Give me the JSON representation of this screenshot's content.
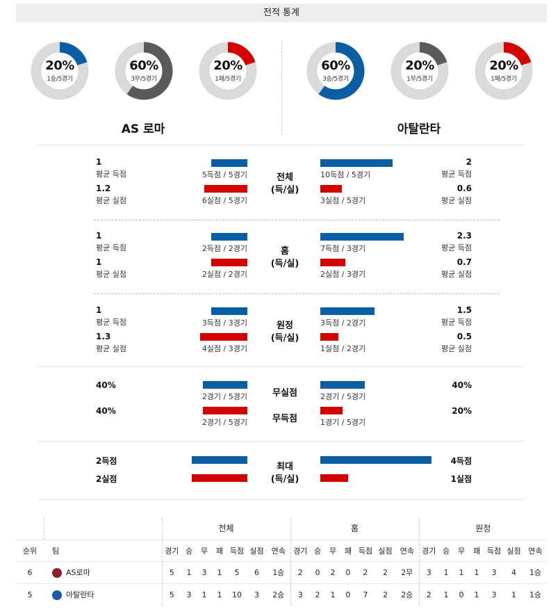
{
  "title": "전적 통계",
  "colors": {
    "blue": "#0b5ea3",
    "red": "#d40000",
    "gray": "#5a5a5a",
    "track": "#dadada"
  },
  "home": {
    "name": "AS 로마",
    "donuts": [
      {
        "pct": "20%",
        "sub": "1승/5경기",
        "value": 0.2,
        "color": "#0b5ea3"
      },
      {
        "pct": "60%",
        "sub": "3무/5경기",
        "value": 0.6,
        "color": "#5a5a5a"
      },
      {
        "pct": "20%",
        "sub": "1패/5경기",
        "value": 0.2,
        "color": "#d40000"
      }
    ]
  },
  "away": {
    "name": "아탈란타",
    "donuts": [
      {
        "pct": "60%",
        "sub": "3승/5경기",
        "value": 0.6,
        "color": "#0b5ea3"
      },
      {
        "pct": "20%",
        "sub": "1무/5경기",
        "value": 0.2,
        "color": "#5a5a5a"
      },
      {
        "pct": "20%",
        "sub": "1패/5경기",
        "value": 0.2,
        "color": "#d40000"
      }
    ]
  },
  "sections": [
    {
      "title": "전체",
      "subtitle": "(득/실)",
      "home": {
        "scored_val": "1",
        "scored_label": "평균 득점",
        "conceded_val": "1.2",
        "conceded_label": "평균 실점",
        "scored_text": "5득점 / 5경기",
        "conceded_text": "6실점 / 5경기",
        "scored_ratio": 1.0,
        "conceded_ratio": 1.2
      },
      "away": {
        "scored_val": "2",
        "scored_label": "평균 득점",
        "conceded_val": "0.6",
        "conceded_label": "평균 실점",
        "scored_text": "10득점 / 5경기",
        "conceded_text": "3실점 / 5경기",
        "scored_ratio": 2.0,
        "conceded_ratio": 0.6
      }
    },
    {
      "title": "홈",
      "subtitle": "(득/실)",
      "home": {
        "scored_val": "1",
        "scored_label": "평균 득점",
        "conceded_val": "1",
        "conceded_label": "평균 실점",
        "scored_text": "2득점 / 2경기",
        "conceded_text": "2실점 / 2경기",
        "scored_ratio": 1.0,
        "conceded_ratio": 1.0
      },
      "away": {
        "scored_val": "2.3",
        "scored_label": "평균 득점",
        "conceded_val": "0.7",
        "conceded_label": "평균 실점",
        "scored_text": "7득점 / 3경기",
        "conceded_text": "2실점 / 3경기",
        "scored_ratio": 2.3,
        "conceded_ratio": 0.7
      }
    },
    {
      "title": "원정",
      "subtitle": "(득/실)",
      "home": {
        "scored_val": "1",
        "scored_label": "평균 득점",
        "conceded_val": "1.3",
        "conceded_label": "평균 실점",
        "scored_text": "3득점 / 3경기",
        "conceded_text": "4실점 / 3경기",
        "scored_ratio": 1.0,
        "conceded_ratio": 1.3
      },
      "away": {
        "scored_val": "1.5",
        "scored_label": "평균 득점",
        "conceded_val": "0.5",
        "conceded_label": "평균 실점",
        "scored_text": "3득점 / 2경기",
        "conceded_text": "1실점 / 2경기",
        "scored_ratio": 1.5,
        "conceded_ratio": 0.5
      }
    }
  ],
  "clean": {
    "row1": {
      "title": "무실점",
      "home_val": "40%",
      "away_val": "40%",
      "home_text": "2경기 / 5경기",
      "away_text": "2경기 / 5경기",
      "home_ratio": 0.4,
      "away_ratio": 0.4
    },
    "row2": {
      "title": "무득점",
      "home_val": "40%",
      "away_val": "20%",
      "home_text": "2경기 / 5경기",
      "away_text": "1경기 / 5경기",
      "home_ratio": 0.4,
      "away_ratio": 0.2
    }
  },
  "max": {
    "title": "최대",
    "subtitle": "(득/실)",
    "home_scored": "2득점",
    "home_conceded": "2실점",
    "away_scored": "4득점",
    "away_conceded": "1실점",
    "home_scored_ratio": 2,
    "home_conceded_ratio": 2,
    "away_scored_ratio": 4,
    "away_conceded_ratio": 1
  },
  "standings": {
    "groups": [
      "전체",
      "홈",
      "원정"
    ],
    "col_rank": "순위",
    "col_team": "팀",
    "cols": [
      "경기",
      "승",
      "무",
      "패",
      "득점",
      "실점",
      "연속"
    ],
    "rows": [
      {
        "rank": "6",
        "team": "AS로마",
        "logo_color": "#8e1f2f",
        "total": [
          "5",
          "1",
          "3",
          "1",
          "5",
          "6",
          "1승"
        ],
        "home": [
          "2",
          "0",
          "2",
          "0",
          "2",
          "2",
          "2무"
        ],
        "away": [
          "3",
          "1",
          "1",
          "1",
          "3",
          "4",
          "1승"
        ]
      },
      {
        "rank": "5",
        "team": "아탈란타",
        "logo_color": "#1e5aa8",
        "total": [
          "5",
          "3",
          "1",
          "1",
          "10",
          "3",
          "2승"
        ],
        "home": [
          "3",
          "2",
          "1",
          "0",
          "7",
          "2",
          "2승"
        ],
        "away": [
          "2",
          "1",
          "0",
          "1",
          "3",
          "1",
          "1승"
        ]
      }
    ]
  }
}
